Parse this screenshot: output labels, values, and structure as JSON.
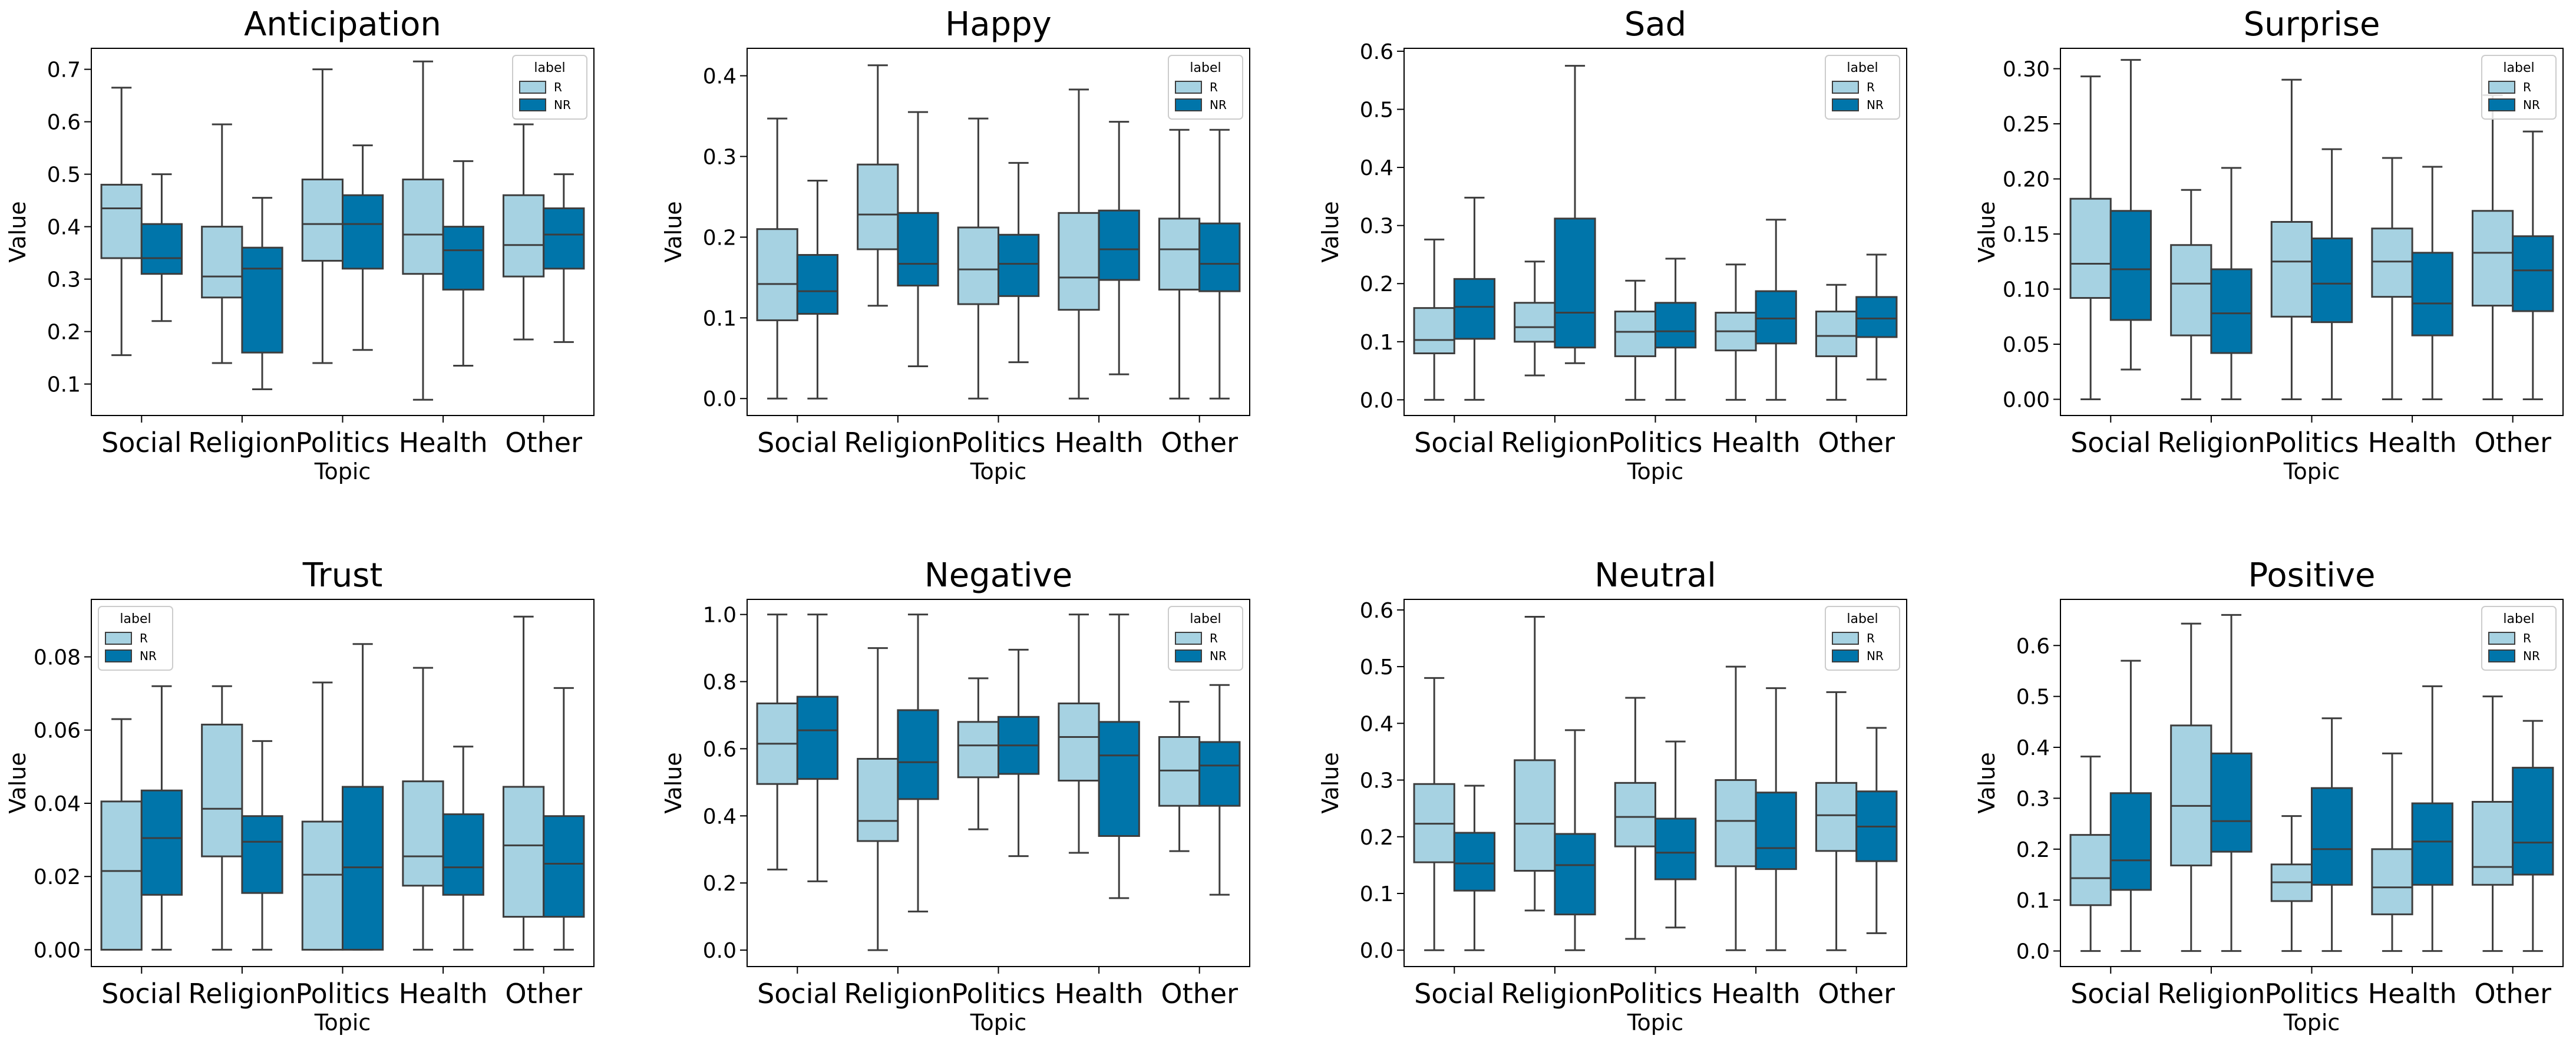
{
  "colors": {
    "R": "#a6d2e2",
    "NR": "#0075aa",
    "line": "#3d3d3d"
  },
  "legend": {
    "title": "label",
    "entries": [
      "R",
      "NR"
    ]
  },
  "chart_data": [
    {
      "type": "box",
      "title": "Anticipation",
      "xlabel": "Topic",
      "ylabel": "Value",
      "categories": [
        "Social",
        "Religion",
        "Politics",
        "Health",
        "Other"
      ],
      "ylim": [
        0.04,
        0.74
      ],
      "yticks": [
        0.1,
        0.2,
        0.3,
        0.4,
        0.5,
        0.6,
        0.7
      ],
      "ytick_labels": [
        "0.1",
        "0.2",
        "0.3",
        "0.4",
        "0.5",
        "0.6",
        "0.7"
      ],
      "legend_position": "top-right",
      "series": [
        {
          "name": "R",
          "boxes": [
            {
              "min": 0.155,
              "q1": 0.34,
              "median": 0.435,
              "q3": 0.48,
              "max": 0.665
            },
            {
              "min": 0.14,
              "q1": 0.265,
              "median": 0.305,
              "q3": 0.4,
              "max": 0.595
            },
            {
              "min": 0.14,
              "q1": 0.335,
              "median": 0.405,
              "q3": 0.49,
              "max": 0.7
            },
            {
              "min": 0.07,
              "q1": 0.31,
              "median": 0.385,
              "q3": 0.49,
              "max": 0.715
            },
            {
              "min": 0.185,
              "q1": 0.305,
              "median": 0.365,
              "q3": 0.46,
              "max": 0.595
            }
          ]
        },
        {
          "name": "NR",
          "boxes": [
            {
              "min": 0.22,
              "q1": 0.31,
              "median": 0.34,
              "q3": 0.405,
              "max": 0.5
            },
            {
              "min": 0.09,
              "q1": 0.16,
              "median": 0.32,
              "q3": 0.36,
              "max": 0.455
            },
            {
              "min": 0.165,
              "q1": 0.32,
              "median": 0.405,
              "q3": 0.46,
              "max": 0.555
            },
            {
              "min": 0.135,
              "q1": 0.28,
              "median": 0.355,
              "q3": 0.4,
              "max": 0.525
            },
            {
              "min": 0.18,
              "q1": 0.32,
              "median": 0.385,
              "q3": 0.435,
              "max": 0.5
            }
          ]
        }
      ]
    },
    {
      "type": "box",
      "title": "Happy",
      "xlabel": "Topic",
      "ylabel": "Value",
      "categories": [
        "Social",
        "Religion",
        "Politics",
        "Health",
        "Other"
      ],
      "ylim": [
        -0.021,
        0.434
      ],
      "yticks": [
        0,
        0.1,
        0.2,
        0.3,
        0.4
      ],
      "ytick_labels": [
        "0.0",
        "0.1",
        "0.2",
        "0.3",
        "0.4"
      ],
      "legend_position": "top-right",
      "series": [
        {
          "name": "R",
          "boxes": [
            {
              "min": 0.0,
              "q1": 0.097,
              "median": 0.142,
              "q3": 0.21,
              "max": 0.347
            },
            {
              "min": 0.115,
              "q1": 0.185,
              "median": 0.228,
              "q3": 0.29,
              "max": 0.413
            },
            {
              "min": 0.0,
              "q1": 0.117,
              "median": 0.16,
              "q3": 0.212,
              "max": 0.347
            },
            {
              "min": 0.0,
              "q1": 0.11,
              "median": 0.15,
              "q3": 0.23,
              "max": 0.383
            },
            {
              "min": 0.0,
              "q1": 0.135,
              "median": 0.185,
              "q3": 0.223,
              "max": 0.333
            }
          ]
        },
        {
          "name": "NR",
          "boxes": [
            {
              "min": 0.0,
              "q1": 0.105,
              "median": 0.133,
              "q3": 0.178,
              "max": 0.27
            },
            {
              "min": 0.04,
              "q1": 0.14,
              "median": 0.167,
              "q3": 0.23,
              "max": 0.355
            },
            {
              "min": 0.045,
              "q1": 0.127,
              "median": 0.167,
              "q3": 0.203,
              "max": 0.292
            },
            {
              "min": 0.03,
              "q1": 0.147,
              "median": 0.185,
              "q3": 0.233,
              "max": 0.343
            },
            {
              "min": 0.0,
              "q1": 0.133,
              "median": 0.167,
              "q3": 0.217,
              "max": 0.333
            }
          ]
        }
      ]
    },
    {
      "type": "box",
      "title": "Sad",
      "xlabel": "Topic",
      "ylabel": "Value",
      "categories": [
        "Social",
        "Religion",
        "Politics",
        "Health",
        "Other"
      ],
      "ylim": [
        -0.027,
        0.605
      ],
      "yticks": [
        0,
        0.1,
        0.2,
        0.3,
        0.4,
        0.5,
        0.6
      ],
      "ytick_labels": [
        "0.0",
        "0.1",
        "0.2",
        "0.3",
        "0.4",
        "0.5",
        "0.6"
      ],
      "legend_position": "top-right",
      "series": [
        {
          "name": "R",
          "boxes": [
            {
              "min": 0.0,
              "q1": 0.08,
              "median": 0.103,
              "q3": 0.158,
              "max": 0.276
            },
            {
              "min": 0.042,
              "q1": 0.1,
              "median": 0.125,
              "q3": 0.167,
              "max": 0.238
            },
            {
              "min": 0.0,
              "q1": 0.075,
              "median": 0.117,
              "q3": 0.152,
              "max": 0.205
            },
            {
              "min": 0.0,
              "q1": 0.085,
              "median": 0.118,
              "q3": 0.15,
              "max": 0.233
            },
            {
              "min": 0.0,
              "q1": 0.075,
              "median": 0.11,
              "q3": 0.152,
              "max": 0.198
            }
          ]
        },
        {
          "name": "NR",
          "boxes": [
            {
              "min": 0.0,
              "q1": 0.105,
              "median": 0.16,
              "q3": 0.208,
              "max": 0.348
            },
            {
              "min": 0.063,
              "q1": 0.09,
              "median": 0.15,
              "q3": 0.312,
              "max": 0.575
            },
            {
              "min": 0.0,
              "q1": 0.09,
              "median": 0.118,
              "q3": 0.167,
              "max": 0.243
            },
            {
              "min": 0.0,
              "q1": 0.097,
              "median": 0.14,
              "q3": 0.187,
              "max": 0.31
            },
            {
              "min": 0.035,
              "q1": 0.108,
              "median": 0.14,
              "q3": 0.177,
              "max": 0.25
            }
          ]
        }
      ]
    },
    {
      "type": "box",
      "title": "Surprise",
      "xlabel": "Topic",
      "ylabel": "Value",
      "categories": [
        "Social",
        "Religion",
        "Politics",
        "Health",
        "Other"
      ],
      "ylim": [
        -0.0147,
        0.3185
      ],
      "yticks": [
        0,
        0.05,
        0.1,
        0.15,
        0.2,
        0.25,
        0.3
      ],
      "ytick_labels": [
        "0.00",
        "0.05",
        "0.10",
        "0.15",
        "0.20",
        "0.25",
        "0.30"
      ],
      "legend_position": "top-right",
      "series": [
        {
          "name": "R",
          "boxes": [
            {
              "min": 0.0,
              "q1": 0.092,
              "median": 0.123,
              "q3": 0.182,
              "max": 0.293
            },
            {
              "min": 0.0,
              "q1": 0.058,
              "median": 0.105,
              "q3": 0.14,
              "max": 0.19
            },
            {
              "min": 0.0,
              "q1": 0.075,
              "median": 0.125,
              "q3": 0.161,
              "max": 0.29
            },
            {
              "min": 0.0,
              "q1": 0.093,
              "median": 0.125,
              "q3": 0.155,
              "max": 0.219
            },
            {
              "min": 0.0,
              "q1": 0.085,
              "median": 0.133,
              "q3": 0.171,
              "max": 0.276
            }
          ]
        },
        {
          "name": "NR",
          "boxes": [
            {
              "min": 0.027,
              "q1": 0.072,
              "median": 0.118,
              "q3": 0.171,
              "max": 0.308
            },
            {
              "min": 0.0,
              "q1": 0.042,
              "median": 0.078,
              "q3": 0.118,
              "max": 0.21
            },
            {
              "min": 0.0,
              "q1": 0.07,
              "median": 0.105,
              "q3": 0.146,
              "max": 0.227
            },
            {
              "min": 0.0,
              "q1": 0.058,
              "median": 0.087,
              "q3": 0.133,
              "max": 0.211
            },
            {
              "min": 0.0,
              "q1": 0.08,
              "median": 0.117,
              "q3": 0.148,
              "max": 0.243
            }
          ]
        }
      ]
    },
    {
      "type": "box",
      "title": "Trust",
      "xlabel": "Topic",
      "ylabel": "Value",
      "categories": [
        "Social",
        "Religion",
        "Politics",
        "Health",
        "Other"
      ],
      "ylim": [
        -0.0046,
        0.0957
      ],
      "yticks": [
        0,
        0.02,
        0.04,
        0.06,
        0.08
      ],
      "ytick_labels": [
        "0.00",
        "0.02",
        "0.04",
        "0.06",
        "0.08"
      ],
      "legend_position": "top-left",
      "series": [
        {
          "name": "R",
          "boxes": [
            {
              "min": 0.0,
              "q1": 0.0,
              "median": 0.0215,
              "q3": 0.0405,
              "max": 0.063
            },
            {
              "min": 0.0,
              "q1": 0.0255,
              "median": 0.0385,
              "q3": 0.0615,
              "max": 0.072
            },
            {
              "min": 0.0,
              "q1": 0.0,
              "median": 0.0205,
              "q3": 0.035,
              "max": 0.073
            },
            {
              "min": 0.0,
              "q1": 0.0175,
              "median": 0.0255,
              "q3": 0.046,
              "max": 0.077
            },
            {
              "min": 0.0,
              "q1": 0.009,
              "median": 0.0285,
              "q3": 0.0445,
              "max": 0.091
            }
          ]
        },
        {
          "name": "NR",
          "boxes": [
            {
              "min": 0.0,
              "q1": 0.015,
              "median": 0.0305,
              "q3": 0.0435,
              "max": 0.072
            },
            {
              "min": 0.0,
              "q1": 0.0155,
              "median": 0.0295,
              "q3": 0.0365,
              "max": 0.057
            },
            {
              "min": 0.0,
              "q1": 0.0,
              "median": 0.0225,
              "q3": 0.0445,
              "max": 0.0835
            },
            {
              "min": 0.0,
              "q1": 0.015,
              "median": 0.0225,
              "q3": 0.037,
              "max": 0.0555
            },
            {
              "min": 0.0,
              "q1": 0.009,
              "median": 0.0235,
              "q3": 0.0365,
              "max": 0.0715
            }
          ]
        }
      ]
    },
    {
      "type": "box",
      "title": "Negative",
      "xlabel": "Topic",
      "ylabel": "Value",
      "categories": [
        "Social",
        "Religion",
        "Politics",
        "Health",
        "Other"
      ],
      "ylim": [
        -0.049,
        1.045
      ],
      "yticks": [
        0,
        0.2,
        0.4,
        0.6,
        0.8,
        1.0
      ],
      "ytick_labels": [
        "0.0",
        "0.2",
        "0.4",
        "0.6",
        "0.8",
        "1.0"
      ],
      "legend_position": "top-right",
      "series": [
        {
          "name": "R",
          "boxes": [
            {
              "min": 0.24,
              "q1": 0.495,
              "median": 0.615,
              "q3": 0.735,
              "max": 1.0
            },
            {
              "min": 0.0,
              "q1": 0.325,
              "median": 0.385,
              "q3": 0.57,
              "max": 0.9
            },
            {
              "min": 0.36,
              "q1": 0.515,
              "median": 0.61,
              "q3": 0.68,
              "max": 0.81
            },
            {
              "min": 0.29,
              "q1": 0.505,
              "median": 0.635,
              "q3": 0.735,
              "max": 1.0
            },
            {
              "min": 0.295,
              "q1": 0.43,
              "median": 0.535,
              "q3": 0.635,
              "max": 0.74
            }
          ]
        },
        {
          "name": "NR",
          "boxes": [
            {
              "min": 0.205,
              "q1": 0.51,
              "median": 0.655,
              "q3": 0.755,
              "max": 1.0
            },
            {
              "min": 0.115,
              "q1": 0.45,
              "median": 0.56,
              "q3": 0.715,
              "max": 1.0
            },
            {
              "min": 0.28,
              "q1": 0.525,
              "median": 0.61,
              "q3": 0.695,
              "max": 0.895
            },
            {
              "min": 0.155,
              "q1": 0.34,
              "median": 0.58,
              "q3": 0.68,
              "max": 1.0
            },
            {
              "min": 0.165,
              "q1": 0.43,
              "median": 0.55,
              "q3": 0.62,
              "max": 0.79
            }
          ]
        }
      ]
    },
    {
      "type": "box",
      "title": "Neutral",
      "xlabel": "Topic",
      "ylabel": "Value",
      "categories": [
        "Social",
        "Religion",
        "Politics",
        "Health",
        "Other"
      ],
      "ylim": [
        -0.0289,
        0.6186
      ],
      "yticks": [
        0,
        0.1,
        0.2,
        0.3,
        0.4,
        0.5,
        0.6
      ],
      "ytick_labels": [
        "0.0",
        "0.1",
        "0.2",
        "0.3",
        "0.4",
        "0.5",
        "0.6"
      ],
      "legend_position": "top-right",
      "series": [
        {
          "name": "R",
          "boxes": [
            {
              "min": 0.0,
              "q1": 0.155,
              "median": 0.223,
              "q3": 0.293,
              "max": 0.48
            },
            {
              "min": 0.07,
              "q1": 0.14,
              "median": 0.223,
              "q3": 0.335,
              "max": 0.588
            },
            {
              "min": 0.02,
              "q1": 0.183,
              "median": 0.235,
              "q3": 0.295,
              "max": 0.445
            },
            {
              "min": 0.0,
              "q1": 0.148,
              "median": 0.228,
              "q3": 0.3,
              "max": 0.5
            },
            {
              "min": 0.0,
              "q1": 0.175,
              "median": 0.238,
              "q3": 0.295,
              "max": 0.455
            }
          ]
        },
        {
          "name": "NR",
          "boxes": [
            {
              "min": 0.0,
              "q1": 0.105,
              "median": 0.153,
              "q3": 0.207,
              "max": 0.29
            },
            {
              "min": 0.0,
              "q1": 0.063,
              "median": 0.15,
              "q3": 0.205,
              "max": 0.388
            },
            {
              "min": 0.04,
              "q1": 0.125,
              "median": 0.172,
              "q3": 0.232,
              "max": 0.368
            },
            {
              "min": 0.0,
              "q1": 0.143,
              "median": 0.18,
              "q3": 0.278,
              "max": 0.462
            },
            {
              "min": 0.03,
              "q1": 0.157,
              "median": 0.218,
              "q3": 0.28,
              "max": 0.392
            }
          ]
        }
      ]
    },
    {
      "type": "box",
      "title": "Positive",
      "xlabel": "Topic",
      "ylabel": "Value",
      "categories": [
        "Social",
        "Religion",
        "Politics",
        "Health",
        "Other"
      ],
      "ylim": [
        -0.0306,
        0.6906
      ],
      "yticks": [
        0,
        0.1,
        0.2,
        0.3,
        0.4,
        0.5,
        0.6
      ],
      "ytick_labels": [
        "0.0",
        "0.1",
        "0.2",
        "0.3",
        "0.4",
        "0.5",
        "0.6"
      ],
      "legend_position": "top-right",
      "series": [
        {
          "name": "R",
          "boxes": [
            {
              "min": 0.0,
              "q1": 0.09,
              "median": 0.143,
              "q3": 0.228,
              "max": 0.382
            },
            {
              "min": 0.0,
              "q1": 0.168,
              "median": 0.285,
              "q3": 0.443,
              "max": 0.643
            },
            {
              "min": 0.0,
              "q1": 0.098,
              "median": 0.135,
              "q3": 0.17,
              "max": 0.265
            },
            {
              "min": 0.0,
              "q1": 0.072,
              "median": 0.125,
              "q3": 0.2,
              "max": 0.388
            },
            {
              "min": 0.0,
              "q1": 0.13,
              "median": 0.165,
              "q3": 0.293,
              "max": 0.5
            }
          ]
        },
        {
          "name": "NR",
          "boxes": [
            {
              "min": 0.0,
              "q1": 0.12,
              "median": 0.178,
              "q3": 0.31,
              "max": 0.57
            },
            {
              "min": 0.0,
              "q1": 0.195,
              "median": 0.255,
              "q3": 0.388,
              "max": 0.66
            },
            {
              "min": 0.0,
              "q1": 0.13,
              "median": 0.2,
              "q3": 0.32,
              "max": 0.457
            },
            {
              "min": 0.0,
              "q1": 0.13,
              "median": 0.215,
              "q3": 0.29,
              "max": 0.52
            },
            {
              "min": 0.0,
              "q1": 0.15,
              "median": 0.213,
              "q3": 0.36,
              "max": 0.452
            }
          ]
        }
      ]
    }
  ]
}
